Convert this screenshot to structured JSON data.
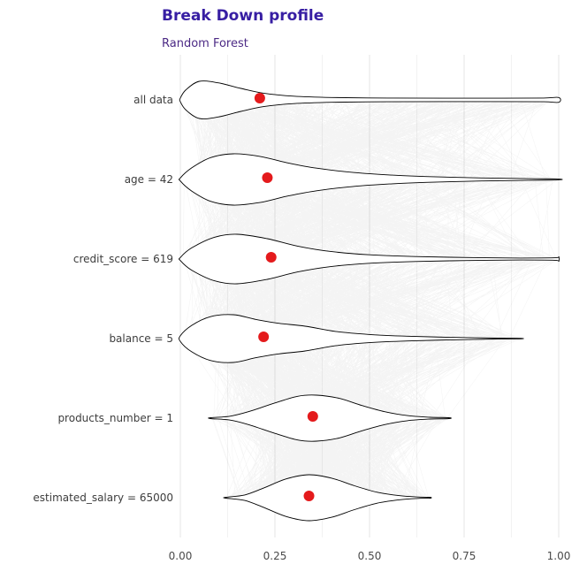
{
  "chart_data": {
    "type": "violin",
    "title": "Break Down profile",
    "subtitle": "Random Forest",
    "xlabel": "",
    "ylabel": "",
    "xlim": [
      0,
      1
    ],
    "grid": true,
    "legend_position": "none",
    "x_ticks": [
      "0.00",
      "0.25",
      "0.50",
      "0.75",
      "1.00"
    ],
    "x_tick_values": [
      0,
      0.25,
      0.5,
      0.75,
      1
    ],
    "rows": [
      {
        "label": "all data",
        "dot": 0.21,
        "density": [
          [
            0.0,
            0.1
          ],
          [
            0.015,
            0.55
          ],
          [
            0.05,
            1.0
          ],
          [
            0.1,
            0.92
          ],
          [
            0.16,
            0.62
          ],
          [
            0.22,
            0.36
          ],
          [
            0.3,
            0.2
          ],
          [
            0.4,
            0.13
          ],
          [
            0.55,
            0.1
          ],
          [
            0.7,
            0.09
          ],
          [
            0.85,
            0.09
          ],
          [
            0.96,
            0.1
          ],
          [
            1.0,
            0.13
          ]
        ]
      },
      {
        "label": "age = 42",
        "dot": 0.23,
        "density": [
          [
            0.0,
            0.06
          ],
          [
            0.03,
            0.45
          ],
          [
            0.08,
            0.85
          ],
          [
            0.14,
            1.0
          ],
          [
            0.21,
            0.9
          ],
          [
            0.28,
            0.66
          ],
          [
            0.36,
            0.44
          ],
          [
            0.46,
            0.27
          ],
          [
            0.56,
            0.17
          ],
          [
            0.68,
            0.1
          ],
          [
            0.8,
            0.06
          ],
          [
            0.92,
            0.03
          ],
          [
            1.0,
            0.02
          ]
        ]
      },
      {
        "label": "credit_score = 619",
        "dot": 0.24,
        "density": [
          [
            0.0,
            0.06
          ],
          [
            0.03,
            0.45
          ],
          [
            0.09,
            0.88
          ],
          [
            0.15,
            1.0
          ],
          [
            0.23,
            0.82
          ],
          [
            0.31,
            0.52
          ],
          [
            0.4,
            0.3
          ],
          [
            0.5,
            0.17
          ],
          [
            0.62,
            0.1
          ],
          [
            0.76,
            0.06
          ],
          [
            0.9,
            0.04
          ],
          [
            0.99,
            0.05
          ],
          [
            1.0,
            0.09
          ]
        ]
      },
      {
        "label": "balance = 5",
        "dot": 0.22,
        "density": [
          [
            0.0,
            0.12
          ],
          [
            0.03,
            0.55
          ],
          [
            0.08,
            0.92
          ],
          [
            0.14,
            1.0
          ],
          [
            0.2,
            0.8
          ],
          [
            0.26,
            0.64
          ],
          [
            0.33,
            0.52
          ],
          [
            0.41,
            0.3
          ],
          [
            0.5,
            0.17
          ],
          [
            0.6,
            0.1
          ],
          [
            0.72,
            0.05
          ],
          [
            0.84,
            0.02
          ],
          [
            0.9,
            0.01
          ]
        ]
      },
      {
        "label": "products_number = 1",
        "dot": 0.35,
        "density": [
          [
            0.08,
            0.02
          ],
          [
            0.13,
            0.08
          ],
          [
            0.18,
            0.28
          ],
          [
            0.25,
            0.66
          ],
          [
            0.31,
            0.95
          ],
          [
            0.36,
            1.0
          ],
          [
            0.42,
            0.86
          ],
          [
            0.48,
            0.55
          ],
          [
            0.54,
            0.28
          ],
          [
            0.6,
            0.11
          ],
          [
            0.66,
            0.04
          ],
          [
            0.71,
            0.02
          ]
        ]
      },
      {
        "label": "estimated_salary = 65000",
        "dot": 0.34,
        "density": [
          [
            0.12,
            0.02
          ],
          [
            0.17,
            0.12
          ],
          [
            0.22,
            0.42
          ],
          [
            0.28,
            0.82
          ],
          [
            0.34,
            1.0
          ],
          [
            0.4,
            0.85
          ],
          [
            0.46,
            0.52
          ],
          [
            0.52,
            0.24
          ],
          [
            0.58,
            0.09
          ],
          [
            0.63,
            0.03
          ],
          [
            0.66,
            0.02
          ]
        ]
      }
    ],
    "colors": {
      "title": "#371ea3",
      "subtitle": "#4c2a85",
      "dot": "#e41a1c",
      "violin_fill": "#ffffff",
      "violin_stroke": "#000000",
      "grid_major": "#e6e6e6",
      "grid_minor": "#f2f2f2",
      "axis_text": "#4a4a4a",
      "row_label_text": "#3d3d3d",
      "profile_lines": "#000000"
    }
  }
}
